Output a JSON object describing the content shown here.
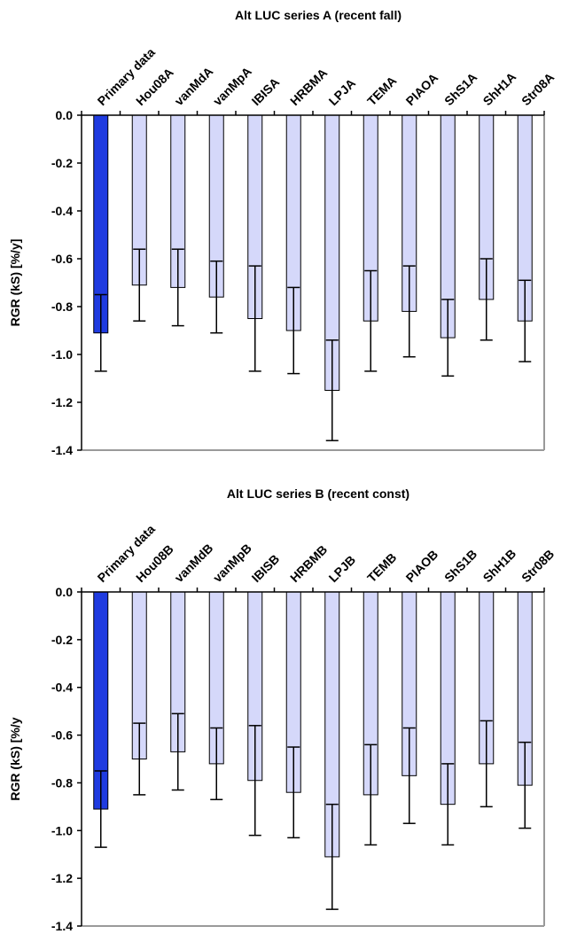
{
  "colors": {
    "primary_bar": "#1f3be0",
    "model_bar": "#d5d8fa",
    "bar_edge": "#000000",
    "axis_box": "#9a9a9a"
  },
  "chart_data": [
    {
      "type": "bar",
      "title": "Alt LUC series A (recent fall)",
      "ylabel": "RGR (kS)  [%/y]",
      "xlabel": "",
      "ylim": [
        -1.4,
        0.0
      ],
      "yticks": [
        "0.0",
        "-0.2",
        "-0.4",
        "-0.6",
        "-0.8",
        "-1.0",
        "-1.2",
        "-1.4"
      ],
      "grid": false,
      "categories": [
        "Primary data",
        "Hou08A",
        "vanMdA",
        "vanMpA",
        "IBISA",
        "HRBMA",
        "LPJA",
        "TEMA",
        "PIAOA",
        "ShS1A",
        "ShH1A",
        "Str08A"
      ],
      "values": [
        -0.91,
        -0.71,
        -0.72,
        -0.76,
        -0.85,
        -0.9,
        -1.15,
        -0.86,
        -0.82,
        -0.93,
        -0.77,
        -0.86
      ],
      "error": [
        0.16,
        0.15,
        0.16,
        0.15,
        0.22,
        0.18,
        0.21,
        0.21,
        0.19,
        0.16,
        0.17,
        0.17
      ],
      "highlight": [
        0
      ]
    },
    {
      "type": "bar",
      "title": "Alt LUC series B (recent const)",
      "ylabel": "RGR (kS)  [%/y",
      "xlabel": "",
      "ylim": [
        -1.4,
        0.0
      ],
      "yticks": [
        "0.0",
        "-0.2",
        "-0.4",
        "-0.6",
        "-0.8",
        "-1.0",
        "-1.2",
        "-1.4"
      ],
      "grid": false,
      "categories": [
        "Primary data",
        "Hou08B",
        "vanMdB",
        "vanMpB",
        "IBISB",
        "HRBMB",
        "LPJB",
        "TEMB",
        "PIAOB",
        "ShS1B",
        "ShH1B",
        "Str08B"
      ],
      "values": [
        -0.91,
        -0.7,
        -0.67,
        -0.72,
        -0.79,
        -0.84,
        -1.11,
        -0.85,
        -0.77,
        -0.89,
        -0.72,
        -0.81
      ],
      "error": [
        0.16,
        0.15,
        0.16,
        0.15,
        0.23,
        0.19,
        0.22,
        0.21,
        0.2,
        0.17,
        0.18,
        0.18
      ],
      "highlight": [
        0
      ]
    }
  ]
}
